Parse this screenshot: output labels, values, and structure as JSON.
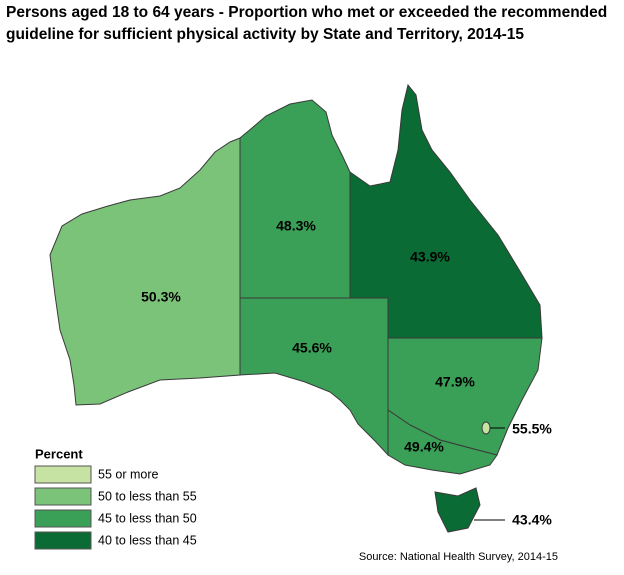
{
  "chart_data": {
    "type": "choropleth",
    "title": [
      "Persons aged 18 to 64 years - Proportion who met or exceeded the recommended",
      "guideline for sufficient physical activity by State and Territory, 2014-15"
    ],
    "values": [
      50.3,
      48.3,
      43.9,
      45.6,
      47.9,
      49.4,
      55.5,
      43.4
    ],
    "value_labels": [
      "50.3%",
      "48.3%",
      "43.9%",
      "45.6%",
      "47.9%",
      "49.4%",
      "55.5%",
      "43.4%"
    ],
    "colors": [
      "#7cc37a",
      "#3a9f57",
      "#0b6b34",
      "#3a9f57",
      "#3a9f57",
      "#3a9f57",
      "#c7e3a4",
      "#0b6b34"
    ],
    "legend": {
      "title": "Percent",
      "items": [
        {
          "label": "55 or more",
          "color": "#c7e3a4"
        },
        {
          "label": "50 to less than 55",
          "color": "#7cc37a"
        },
        {
          "label": "45 to less than 50",
          "color": "#3a9f57"
        },
        {
          "label": "40 to less than 45",
          "color": "#0b6b34"
        }
      ]
    },
    "source": "Source: National Health Survey, 2014-15"
  }
}
